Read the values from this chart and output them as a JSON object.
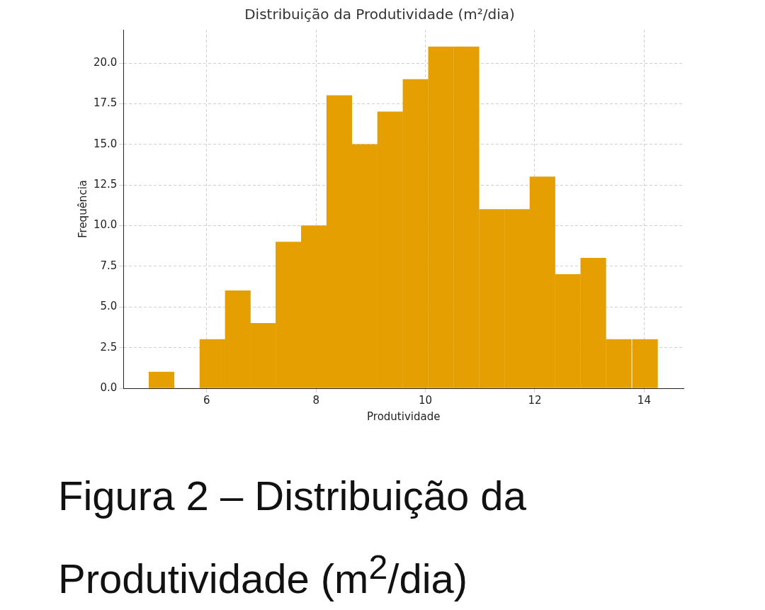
{
  "chart_data": {
    "type": "histogram",
    "title": "Distribuição da Produtividade (m²/dia)",
    "xlabel": "Produtividade",
    "ylabel": "Frequência",
    "bins": [
      4.94,
      5.41,
      5.87,
      6.34,
      6.8,
      7.26,
      7.73,
      8.19,
      8.66,
      9.12,
      9.59,
      10.05,
      10.52,
      10.98,
      11.45,
      11.91,
      12.37,
      12.84,
      13.3,
      13.77,
      14.26
    ],
    "values": [
      1,
      0,
      3,
      6,
      4,
      9,
      10,
      18,
      15,
      17,
      19,
      21,
      21,
      11,
      11,
      13,
      7,
      8,
      3,
      3
    ],
    "color": "#e69f00",
    "xlim": [
      4.48,
      14.72
    ],
    "xticks": [
      6,
      8,
      10,
      12,
      14
    ],
    "ylim": [
      0,
      22.05
    ],
    "yticks": [
      {
        "value": 0,
        "label": "0.0"
      },
      {
        "value": 2.5,
        "label": "2.5"
      },
      {
        "value": 5,
        "label": "5.0"
      },
      {
        "value": 7.5,
        "label": "7.5"
      },
      {
        "value": 10,
        "label": "10.0"
      },
      {
        "value": 12.5,
        "label": "12.5"
      },
      {
        "value": 15,
        "label": "15.0"
      },
      {
        "value": 17.5,
        "label": "17.5"
      },
      {
        "value": 20,
        "label": "20.0"
      }
    ],
    "grid": true,
    "annotations": [
      "Figura 2 – Distribuição da Produtividade (m$^{2}$/dia)"
    ]
  }
}
